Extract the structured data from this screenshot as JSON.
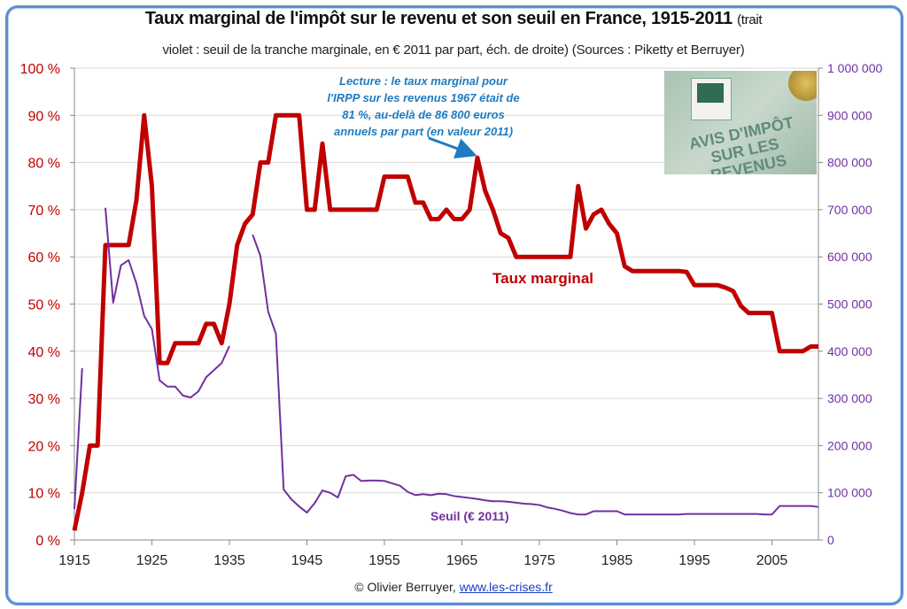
{
  "title": "Taux marginal de l'impôt sur le revenu et son seuil en France, 1915-2011",
  "title_suffix": "(trait",
  "subtitle": "violet : seuil de la tranche marginale, en € 2011 par part, éch. de droite) (Sources : Piketty et Berruyer)",
  "footer": {
    "author": "© Olivier Berruyer,",
    "link": "www.les-crises.fr"
  },
  "photo": {
    "text_line1": "AVIS D'IMPÔT",
    "text_line2": "SUR LES REVENUS"
  },
  "chart_data": {
    "type": "line",
    "title": "Taux marginal de l'impôt sur le revenu et son seuil en France, 1915-2011",
    "xlim": [
      1915,
      2011
    ],
    "x_ticks": [
      "1915",
      "1925",
      "1935",
      "1945",
      "1955",
      "1965",
      "1975",
      "1985",
      "1995",
      "2005"
    ],
    "y_left": {
      "lim": [
        0,
        100
      ],
      "ticks": [
        "0 %",
        "10 %",
        "20 %",
        "30 %",
        "40 %",
        "50 %",
        "60 %",
        "70 %",
        "80 %",
        "90 %",
        "100 %"
      ],
      "color": "#c00000"
    },
    "y_right": {
      "lim": [
        0,
        1000000
      ],
      "ticks": [
        "0",
        "100 000",
        "200 000",
        "300 000",
        "400 000",
        "500 000",
        "600 000",
        "700 000",
        "800 000",
        "900 000",
        "1 000 000"
      ],
      "color": "#7030a0"
    },
    "grid": true,
    "annotation": {
      "lines": [
        "Lecture : le taux marginal pour",
        "l'IRPP sur les revenus 1967 était de",
        "81 %, au-delà de 86 800 euros",
        "annuels par part (en valeur 2011)"
      ],
      "target_year": 1967,
      "color": "#1f7bbf"
    },
    "series": [
      {
        "name": "Taux marginal",
        "axis": "left",
        "color": "#c00000",
        "points": [
          [
            1915,
            2
          ],
          [
            1916,
            10
          ],
          [
            1917,
            20
          ],
          [
            1918,
            20
          ],
          [
            1919,
            62.5
          ],
          [
            1920,
            62.5
          ],
          [
            1921,
            62.5
          ],
          [
            1922,
            62.5
          ],
          [
            1923,
            72
          ],
          [
            1924,
            90
          ],
          [
            1925,
            75
          ],
          [
            1926,
            37.5
          ],
          [
            1927,
            37.5
          ],
          [
            1928,
            41.7
          ],
          [
            1929,
            41.7
          ],
          [
            1930,
            41.7
          ],
          [
            1931,
            41.7
          ],
          [
            1932,
            45.8
          ],
          [
            1933,
            45.8
          ],
          [
            1934,
            41.7
          ],
          [
            1935,
            50
          ],
          [
            1936,
            62.5
          ],
          [
            1937,
            67
          ],
          [
            1938,
            69
          ],
          [
            1939,
            80
          ],
          [
            1940,
            80
          ],
          [
            1941,
            90
          ],
          [
            1942,
            90
          ],
          [
            1943,
            90
          ],
          [
            1944,
            90
          ],
          [
            1945,
            70
          ],
          [
            1946,
            70
          ],
          [
            1947,
            84
          ],
          [
            1948,
            70
          ],
          [
            1949,
            70
          ],
          [
            1950,
            70
          ],
          [
            1951,
            70
          ],
          [
            1952,
            70
          ],
          [
            1953,
            70
          ],
          [
            1954,
            70
          ],
          [
            1955,
            77
          ],
          [
            1956,
            77
          ],
          [
            1957,
            77
          ],
          [
            1958,
            77
          ],
          [
            1959,
            71.5
          ],
          [
            1960,
            71.5
          ],
          [
            1961,
            68
          ],
          [
            1962,
            68
          ],
          [
            1963,
            70
          ],
          [
            1964,
            68
          ],
          [
            1965,
            68
          ],
          [
            1966,
            70
          ],
          [
            1967,
            81
          ],
          [
            1968,
            74
          ],
          [
            1969,
            70
          ],
          [
            1970,
            65
          ],
          [
            1971,
            64
          ],
          [
            1972,
            60
          ],
          [
            1973,
            60
          ],
          [
            1974,
            60
          ],
          [
            1975,
            60
          ],
          [
            1976,
            60
          ],
          [
            1977,
            60
          ],
          [
            1978,
            60
          ],
          [
            1979,
            60
          ],
          [
            1980,
            75
          ],
          [
            1981,
            66
          ],
          [
            1982,
            69
          ],
          [
            1983,
            70
          ],
          [
            1984,
            67
          ],
          [
            1985,
            65
          ],
          [
            1986,
            58
          ],
          [
            1987,
            57
          ],
          [
            1988,
            57
          ],
          [
            1989,
            57
          ],
          [
            1990,
            57
          ],
          [
            1991,
            57
          ],
          [
            1992,
            57
          ],
          [
            1993,
            57
          ],
          [
            1994,
            56.8
          ],
          [
            1995,
            54
          ],
          [
            1996,
            54
          ],
          [
            1997,
            54
          ],
          [
            1998,
            54
          ],
          [
            1999,
            53.5
          ],
          [
            2000,
            52.75
          ],
          [
            2001,
            49.6
          ],
          [
            2002,
            48.1
          ],
          [
            2003,
            48.1
          ],
          [
            2004,
            48.1
          ],
          [
            2005,
            48.1
          ],
          [
            2006,
            40
          ],
          [
            2007,
            40
          ],
          [
            2008,
            40
          ],
          [
            2009,
            40
          ],
          [
            2010,
            41
          ],
          [
            2011,
            41
          ]
        ]
      },
      {
        "name": "Seuil (€ 2011)",
        "axis": "right",
        "color": "#7030a0",
        "segments": [
          [
            [
              1915,
              66000
            ],
            [
              1916,
              364000
            ]
          ],
          [
            [
              1919,
              704000
            ],
            [
              1920,
              503000
            ],
            [
              1921,
              582000
            ],
            [
              1922,
              593000
            ],
            [
              1923,
              544000
            ],
            [
              1924,
              475000
            ],
            [
              1925,
              447000
            ],
            [
              1926,
              338000
            ],
            [
              1927,
              325000
            ],
            [
              1928,
              325000
            ],
            [
              1929,
              306000
            ],
            [
              1930,
              302000
            ],
            [
              1931,
              315000
            ],
            [
              1932,
              345000
            ],
            [
              1933,
              360000
            ],
            [
              1934,
              375000
            ],
            [
              1935,
              411000
            ]
          ],
          [
            [
              1938,
              647000
            ],
            [
              1939,
              602000
            ],
            [
              1940,
              484000
            ],
            [
              1941,
              437000
            ],
            [
              1942,
              107000
            ],
            [
              1943,
              86000
            ],
            [
              1944,
              71000
            ],
            [
              1945,
              58000
            ],
            [
              1946,
              78000
            ],
            [
              1947,
              105000
            ],
            [
              1948,
              100000
            ],
            [
              1949,
              90000
            ],
            [
              1950,
              135000
            ],
            [
              1951,
              138000
            ],
            [
              1952,
              125000
            ],
            [
              1953,
              126000
            ],
            [
              1954,
              126000
            ],
            [
              1955,
              125000
            ],
            [
              1956,
              120000
            ],
            [
              1957,
              115000
            ],
            [
              1958,
              102000
            ],
            [
              1959,
              95000
            ],
            [
              1960,
              97000
            ],
            [
              1961,
              95000
            ],
            [
              1962,
              98000
            ],
            [
              1963,
              97000
            ],
            [
              1964,
              93000
            ],
            [
              1965,
              91000
            ],
            [
              1966,
              89000
            ],
            [
              1967,
              86800
            ],
            [
              1968,
              84000
            ],
            [
              1969,
              82000
            ],
            [
              1970,
              82000
            ],
            [
              1971,
              81000
            ],
            [
              1972,
              79000
            ],
            [
              1973,
              77000
            ],
            [
              1974,
              76000
            ],
            [
              1975,
              74000
            ],
            [
              1976,
              69000
            ],
            [
              1977,
              66000
            ],
            [
              1978,
              62000
            ],
            [
              1979,
              57000
            ],
            [
              1980,
              54000
            ],
            [
              1981,
              54000
            ],
            [
              1982,
              61000
            ],
            [
              1983,
              61000
            ],
            [
              1984,
              61000
            ],
            [
              1985,
              61000
            ],
            [
              1986,
              54000
            ],
            [
              1987,
              54000
            ],
            [
              1988,
              54000
            ],
            [
              1989,
              54000
            ],
            [
              1990,
              54000
            ],
            [
              1991,
              54000
            ],
            [
              1992,
              54000
            ],
            [
              1993,
              54000
            ],
            [
              1994,
              55000
            ],
            [
              1995,
              55000
            ],
            [
              1996,
              55000
            ],
            [
              1997,
              55000
            ],
            [
              1998,
              55000
            ],
            [
              1999,
              55000
            ],
            [
              2000,
              55000
            ],
            [
              2001,
              55000
            ],
            [
              2002,
              55000
            ],
            [
              2003,
              55000
            ],
            [
              2004,
              54000
            ],
            [
              2005,
              54000
            ],
            [
              2006,
              72000
            ],
            [
              2007,
              72000
            ],
            [
              2008,
              72000
            ],
            [
              2009,
              72000
            ],
            [
              2010,
              72000
            ],
            [
              2011,
              70000
            ]
          ]
        ]
      }
    ]
  }
}
